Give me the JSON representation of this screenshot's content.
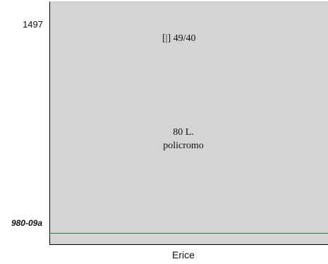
{
  "labels": {
    "year": "1497",
    "reference": "980-09a",
    "catalog": "[|] 49/40",
    "value": "80 L.",
    "type": "policromo",
    "place": "Erice"
  },
  "colors": {
    "panel": "#d4d4d4",
    "line": "#2f7a3c"
  }
}
